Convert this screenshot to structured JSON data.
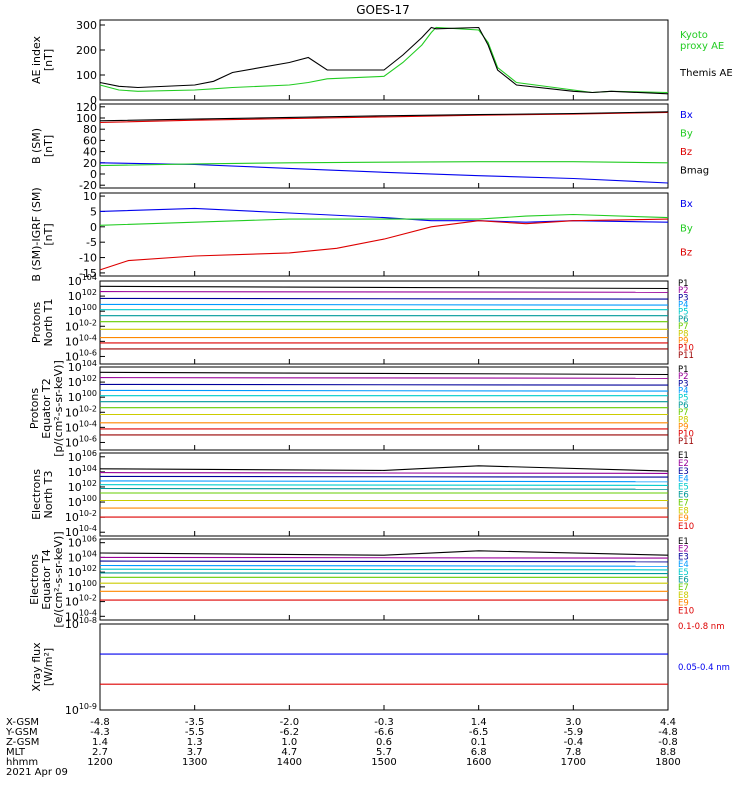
{
  "title": "GOES-17",
  "date": "2021 Apr 09",
  "colors": {
    "black": "#000000",
    "red": "#dd0000",
    "green": "#22cc22",
    "blue": "#0000ee",
    "yellow": "#d8d800",
    "orange": "#ff9900",
    "cyan": "#00cccc",
    "purple": "#990099",
    "navy": "#000099",
    "dodger": "#0099ff",
    "aqua": "#00cccc",
    "teal": "#009999",
    "lime": "#66cc00",
    "gold": "#cccc00",
    "darkorange": "#ff8800",
    "crimson": "#cc0000"
  },
  "chart_data": [
    {
      "type": "line",
      "ylabel": [
        "AE index",
        "[nT]"
      ],
      "yticks": [
        "300",
        "200",
        "100",
        "0"
      ],
      "ylim": [
        0,
        320
      ],
      "series": [
        {
          "name": "Kyoto proxy AE",
          "label_lines": [
            "Kyoto",
            "proxy AE"
          ],
          "color": "#22cc22",
          "x": [
            1200,
            1220,
            1240,
            1300,
            1320,
            1340,
            1400,
            1420,
            1440,
            1500,
            1520,
            1540,
            1550,
            1555,
            1600,
            1610,
            1620,
            1640,
            1700,
            1720,
            1740,
            1800
          ],
          "y": [
            60,
            40,
            35,
            40,
            45,
            50,
            60,
            70,
            85,
            95,
            150,
            220,
            270,
            290,
            280,
            230,
            130,
            70,
            40,
            30,
            35,
            30
          ]
        },
        {
          "name": "Themis AE",
          "label_lines": [
            "Themis AE"
          ],
          "color": "#000000",
          "x": [
            1200,
            1220,
            1240,
            1300,
            1320,
            1340,
            1400,
            1420,
            1440,
            1500,
            1520,
            1540,
            1550,
            1555,
            1600,
            1610,
            1620,
            1640,
            1700,
            1720,
            1740,
            1800
          ],
          "y": [
            70,
            55,
            50,
            60,
            75,
            110,
            150,
            170,
            120,
            120,
            180,
            250,
            290,
            285,
            290,
            220,
            120,
            60,
            35,
            30,
            35,
            25
          ]
        }
      ]
    },
    {
      "type": "line",
      "ylabel": [
        "B (SM)",
        "[nT]"
      ],
      "yticks": [
        "120",
        "100",
        "80",
        "60",
        "40",
        "20",
        "0",
        "-20"
      ],
      "ylim": [
        -25,
        125
      ],
      "series": [
        {
          "name": "Bx",
          "color": "#0000ee",
          "x": [
            1200,
            1300,
            1400,
            1500,
            1600,
            1700,
            1800
          ],
          "y": [
            20,
            17,
            10,
            3,
            -3,
            -8,
            -16
          ]
        },
        {
          "name": "By",
          "color": "#22cc22",
          "x": [
            1200,
            1300,
            1400,
            1500,
            1600,
            1700,
            1800
          ],
          "y": [
            15,
            18,
            20,
            21,
            22,
            22,
            20
          ]
        },
        {
          "name": "Bz",
          "color": "#dd0000",
          "x": [
            1200,
            1300,
            1400,
            1500,
            1600,
            1700,
            1800
          ],
          "y": [
            92,
            96,
            99,
            102,
            105,
            107,
            110
          ]
        },
        {
          "name": "Bmag",
          "color": "#000000",
          "x": [
            1200,
            1300,
            1400,
            1500,
            1600,
            1700,
            1800
          ],
          "y": [
            95,
            98,
            101,
            104,
            106,
            108,
            111
          ]
        }
      ]
    },
    {
      "type": "line",
      "ylabel": [
        "B (SM)-IGRF (SM)",
        "[nT]"
      ],
      "yticks": [
        "10",
        "5",
        "0",
        "-5",
        "-10",
        "-15"
      ],
      "ylim": [
        -16,
        11
      ],
      "series": [
        {
          "name": "Bx",
          "color": "#0000ee",
          "x": [
            1200,
            1300,
            1400,
            1500,
            1550,
            1600,
            1650,
            1700,
            1800
          ],
          "y": [
            5,
            6,
            4.5,
            3,
            2,
            2,
            1.5,
            2,
            1.5
          ]
        },
        {
          "name": "By",
          "color": "#22cc22",
          "x": [
            1200,
            1300,
            1400,
            1500,
            1550,
            1600,
            1650,
            1700,
            1800
          ],
          "y": [
            0.5,
            1.5,
            2.5,
            2.5,
            2.5,
            2.5,
            3.5,
            4,
            3
          ]
        },
        {
          "name": "Bz",
          "color": "#dd0000",
          "x": [
            1200,
            1230,
            1300,
            1400,
            1450,
            1500,
            1550,
            1600,
            1650,
            1700,
            1800
          ],
          "y": [
            -14,
            -11,
            -9.5,
            -8.5,
            -7,
            -4,
            0,
            2,
            1,
            2,
            2.5
          ]
        }
      ]
    },
    {
      "type": "line",
      "log": true,
      "ylabel": [
        "Protons",
        "North T1"
      ],
      "yticks": [
        "10^4",
        "10^2",
        "10^0",
        "10^-2",
        "10^-4",
        "10^-6"
      ],
      "ylim": [
        -7,
        4
      ],
      "series": [
        {
          "name": "P1",
          "color": "#000000",
          "x": [
            1200,
            1800
          ],
          "y": [
            3.3,
            3.0
          ]
        },
        {
          "name": "P2",
          "color": "#990099",
          "x": [
            1200,
            1800
          ],
          "y": [
            2.6,
            2.5
          ]
        },
        {
          "name": "P3",
          "color": "#000099",
          "x": [
            1200,
            1800
          ],
          "y": [
            1.7,
            1.6
          ]
        },
        {
          "name": "P4",
          "color": "#0099ff",
          "x": [
            1200,
            1800
          ],
          "y": [
            0.9,
            0.8
          ]
        },
        {
          "name": "P5",
          "color": "#00cccc",
          "x": [
            1200,
            1800
          ],
          "y": [
            0.2,
            0.2
          ]
        },
        {
          "name": "P6",
          "color": "#009999",
          "x": [
            1200,
            1800
          ],
          "y": [
            -0.6,
            -0.6
          ]
        },
        {
          "name": "P7",
          "color": "#66cc00",
          "x": [
            1200,
            1800
          ],
          "y": [
            -1.4,
            -1.4
          ]
        },
        {
          "name": "P8",
          "color": "#cccc00",
          "x": [
            1200,
            1800
          ],
          "y": [
            -2.4,
            -2.4
          ]
        },
        {
          "name": "P9",
          "color": "#ff8800",
          "x": [
            1200,
            1800
          ],
          "y": [
            -3.5,
            -3.5
          ]
        },
        {
          "name": "P10",
          "color": "#dd0000",
          "x": [
            1200,
            1800
          ],
          "y": [
            -4.2,
            -4.2
          ]
        },
        {
          "name": "P11",
          "color": "#990000",
          "x": [
            1200,
            1800
          ],
          "y": [
            -5,
            -5
          ]
        }
      ]
    },
    {
      "type": "line",
      "log": true,
      "ylabel": [
        "Protons",
        "Equator T2",
        "[p/(cm²-s-sr-keV)]"
      ],
      "yticks": [
        "10^4",
        "10^2",
        "10^0",
        "10^-2",
        "10^-4",
        "10^-6"
      ],
      "ylim": [
        -7,
        4
      ],
      "series": [
        {
          "name": "P1",
          "color": "#000000",
          "x": [
            1200,
            1800
          ],
          "y": [
            3.3,
            3.0
          ]
        },
        {
          "name": "P2",
          "color": "#990099",
          "x": [
            1200,
            1800
          ],
          "y": [
            2.6,
            2.5
          ]
        },
        {
          "name": "P3",
          "color": "#000099",
          "x": [
            1200,
            1800
          ],
          "y": [
            1.7,
            1.6
          ]
        },
        {
          "name": "P4",
          "color": "#0099ff",
          "x": [
            1200,
            1800
          ],
          "y": [
            0.9,
            0.8
          ]
        },
        {
          "name": "P5",
          "color": "#00cccc",
          "x": [
            1200,
            1800
          ],
          "y": [
            0.2,
            0.2
          ]
        },
        {
          "name": "P6",
          "color": "#009999",
          "x": [
            1200,
            1800
          ],
          "y": [
            -0.6,
            -0.6
          ]
        },
        {
          "name": "P7",
          "color": "#66cc00",
          "x": [
            1200,
            1800
          ],
          "y": [
            -1.4,
            -1.4
          ]
        },
        {
          "name": "P8",
          "color": "#cccc00",
          "x": [
            1200,
            1800
          ],
          "y": [
            -2.3,
            -2.3
          ]
        },
        {
          "name": "P9",
          "color": "#ff8800",
          "x": [
            1200,
            1800
          ],
          "y": [
            -3.4,
            -3.4
          ]
        },
        {
          "name": "P10",
          "color": "#dd0000",
          "x": [
            1200,
            1800
          ],
          "y": [
            -4.2,
            -4.2
          ]
        },
        {
          "name": "P11",
          "color": "#990000",
          "x": [
            1200,
            1800
          ],
          "y": [
            -5,
            -5
          ]
        }
      ]
    },
    {
      "type": "line",
      "log": true,
      "ylabel": [
        "Electrons",
        "North T3"
      ],
      "yticks": [
        "10^6",
        "10^4",
        "10^2",
        "10^0",
        "10^-2",
        "10^-4"
      ],
      "ylim": [
        -4.5,
        6.5
      ],
      "series": [
        {
          "name": "E1",
          "color": "#000000",
          "x": [
            1200,
            1500,
            1600,
            1800
          ],
          "y": [
            4.4,
            4.2,
            4.8,
            4.1
          ]
        },
        {
          "name": "E2",
          "color": "#990099",
          "x": [
            1200,
            1800
          ],
          "y": [
            3.9,
            3.8
          ]
        },
        {
          "name": "E3",
          "color": "#000099",
          "x": [
            1200,
            1800
          ],
          "y": [
            3.4,
            3.3
          ]
        },
        {
          "name": "E4",
          "color": "#0099ff",
          "x": [
            1200,
            1800
          ],
          "y": [
            2.8,
            2.7
          ]
        },
        {
          "name": "E5",
          "color": "#00cccc",
          "x": [
            1200,
            1800
          ],
          "y": [
            2.3,
            2.2
          ]
        },
        {
          "name": "E6",
          "color": "#009999",
          "x": [
            1200,
            1800
          ],
          "y": [
            1.8,
            1.7
          ]
        },
        {
          "name": "E7",
          "color": "#66cc00",
          "x": [
            1200,
            1800
          ],
          "y": [
            1.2,
            1.2
          ]
        },
        {
          "name": "E8",
          "color": "#cccc00",
          "x": [
            1200,
            1800
          ],
          "y": [
            0.2,
            0.2
          ]
        },
        {
          "name": "E9",
          "color": "#ff8800",
          "x": [
            1200,
            1800
          ],
          "y": [
            -0.8,
            -0.8
          ]
        },
        {
          "name": "E10",
          "color": "#dd0000",
          "x": [
            1200,
            1800
          ],
          "y": [
            -2,
            -2
          ]
        }
      ]
    },
    {
      "type": "line",
      "log": true,
      "ylabel": [
        "Electrons",
        "Equator T4",
        "[e/(cm²-s-sr-keV)]"
      ],
      "yticks": [
        "10^6",
        "10^4",
        "10^2",
        "10^0",
        "10^-2",
        "10^-4"
      ],
      "ylim": [
        -4.5,
        6.5
      ],
      "series": [
        {
          "name": "E1",
          "color": "#000000",
          "x": [
            1200,
            1500,
            1600,
            1800
          ],
          "y": [
            4.6,
            4.3,
            4.9,
            4.3
          ]
        },
        {
          "name": "E2",
          "color": "#990099",
          "x": [
            1200,
            1800
          ],
          "y": [
            4.0,
            3.9
          ]
        },
        {
          "name": "E3",
          "color": "#000099",
          "x": [
            1200,
            1800
          ],
          "y": [
            3.5,
            3.4
          ]
        },
        {
          "name": "E4",
          "color": "#0099ff",
          "x": [
            1200,
            1800
          ],
          "y": [
            2.9,
            2.8
          ]
        },
        {
          "name": "E5",
          "color": "#00cccc",
          "x": [
            1200,
            1800
          ],
          "y": [
            2.4,
            2.3
          ]
        },
        {
          "name": "E6",
          "color": "#009999",
          "x": [
            1200,
            1800
          ],
          "y": [
            1.9,
            1.8
          ]
        },
        {
          "name": "E7",
          "color": "#66cc00",
          "x": [
            1200,
            1800
          ],
          "y": [
            1.3,
            1.3
          ]
        },
        {
          "name": "E8",
          "color": "#cccc00",
          "x": [
            1200,
            1800
          ],
          "y": [
            0.5,
            0.5
          ]
        },
        {
          "name": "E9",
          "color": "#ff8800",
          "x": [
            1200,
            1800
          ],
          "y": [
            -0.6,
            -0.6
          ]
        },
        {
          "name": "E10",
          "color": "#dd0000",
          "x": [
            1200,
            1800
          ],
          "y": [
            -1.8,
            -1.8
          ]
        }
      ]
    },
    {
      "type": "line",
      "log": true,
      "ylabel": [
        "Xray flux",
        "[W/m²]"
      ],
      "yticks": [
        "10^-8",
        "10^-9"
      ],
      "ylim": [
        -9,
        -8
      ],
      "series": [
        {
          "name": "0.1-0.8 nm",
          "color": "#dd0000",
          "x": [
            1200,
            1800
          ],
          "y": [
            -8.7,
            -8.7
          ]
        },
        {
          "name": "0.05-0.4 nm",
          "color": "#0000ee",
          "x": [
            1200,
            1800
          ],
          "y": [
            -8.35,
            -8.35
          ]
        }
      ]
    }
  ],
  "xaxis": {
    "rows": [
      {
        "label": "X-GSM",
        "values": [
          "-4.8",
          "-3.5",
          "-2.0",
          "-0.3",
          "1.4",
          "3.0",
          "4.4"
        ]
      },
      {
        "label": "Y-GSM",
        "values": [
          "-4.3",
          "-5.5",
          "-6.2",
          "-6.6",
          "-6.5",
          "-5.9",
          "-4.8"
        ]
      },
      {
        "label": "Z-GSM",
        "values": [
          "1.4",
          "1.3",
          "1.0",
          "0.6",
          "0.1",
          "-0.4",
          "-0.8"
        ]
      },
      {
        "label": "MLT",
        "values": [
          "2.7",
          "3.7",
          "4.7",
          "5.7",
          "6.8",
          "7.8",
          "8.8"
        ]
      },
      {
        "label": "hhmm",
        "values": [
          "1200",
          "1300",
          "1400",
          "1500",
          "1600",
          "1700",
          "1800"
        ]
      }
    ]
  }
}
